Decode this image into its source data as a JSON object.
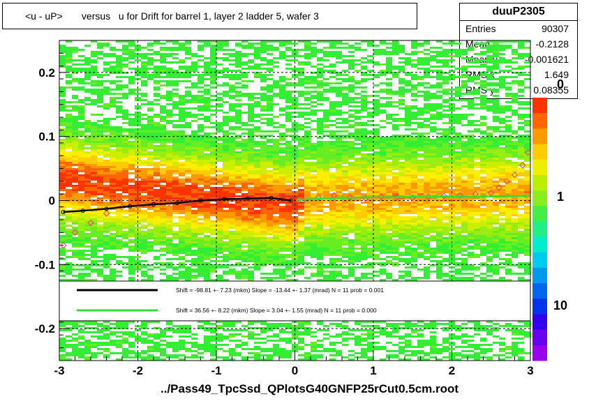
{
  "chart_data": {
    "type": "heatmap",
    "title": "<u - uP>       versus   u for Drift for barrel 1, layer 2 ladder 5, wafer 3",
    "xlabel": "../Pass49_TpcSsd_QPlotsG40GNFP25rCut0.5cm.root",
    "ylabel": "",
    "xlim": [
      -3,
      3
    ],
    "ylim": [
      -0.25,
      0.25
    ],
    "x_ticks": [
      "-3",
      "-2",
      "-1",
      "0",
      "1",
      "2",
      "3"
    ],
    "y_ticks": [
      "-0.2",
      "-0.1",
      "0",
      "0.1",
      "0.2"
    ],
    "z_ticks": [
      "10",
      "1",
      "0"
    ],
    "grid": true,
    "stats": {
      "name": "duuP2305",
      "rows": [
        {
          "label": "Entries",
          "value": "90307"
        },
        {
          "label": "Mean x",
          "value": "-0.2128"
        },
        {
          "label": "Mean y",
          "value": "-0.001621"
        },
        {
          "label": "RMS x",
          "value": "1.649"
        },
        {
          "label": "RMS y",
          "value": "0.08355"
        }
      ]
    },
    "legend": [
      {
        "color": "#000000",
        "text": "Shift =   -98.81 +- 7.23 (mkm) Slope =   -13.44 +- 1.37 (mrad)  N = 11 prob = 0.001"
      },
      {
        "color": "#33dd33",
        "text": "Shift =    36.56 +- 8.22 (mkm) Slope =     3.04 +- 1.55 (mrad)  N = 11 prob = 0.000"
      }
    ],
    "series": [
      {
        "name": "fit-left",
        "color": "#000000",
        "x": [
          -2.95,
          -2.7,
          -2.4,
          -2.1,
          -1.8,
          -1.5,
          -1.2,
          -0.9,
          -0.6,
          -0.3,
          -0.05
        ],
        "y": [
          -0.018,
          -0.016,
          -0.013,
          -0.009,
          -0.006,
          -0.004,
          0.0,
          0.002,
          0.003,
          0.004,
          0.0
        ]
      },
      {
        "name": "fit-right",
        "color": "#33dd33",
        "x": [
          0.05,
          0.3,
          0.6,
          0.9,
          1.2,
          1.5,
          1.8,
          2.1,
          2.4,
          2.7,
          2.95
        ],
        "y": [
          0.001,
          0.003,
          0.004,
          0.005,
          0.005,
          0.006,
          0.006,
          0.006,
          0.006,
          0.007,
          0.007
        ]
      }
    ],
    "profile_points": {
      "x": [
        -2.95,
        -2.8,
        -2.6,
        -2.4,
        -2.2,
        -2.0,
        -1.8,
        -1.6,
        -1.4,
        -1.2,
        -1.0,
        -0.8,
        -0.6,
        -0.4,
        -0.2,
        -0.05,
        0.1,
        0.3,
        0.5,
        0.7,
        0.9,
        1.1,
        1.3,
        1.5,
        1.7,
        1.9,
        2.1,
        2.3,
        2.5,
        2.6,
        2.7,
        2.8,
        2.9,
        2.97
      ],
      "y": [
        -0.07,
        -0.05,
        -0.035,
        -0.02,
        -0.01,
        -0.008,
        -0.006,
        -0.004,
        -0.003,
        0.0,
        0.001,
        0.002,
        0.003,
        0.006,
        0.005,
        0.0,
        0.0,
        0.005,
        0.008,
        0.005,
        0.003,
        0.006,
        0.005,
        0.004,
        0.006,
        0.007,
        0.008,
        0.01,
        0.012,
        0.02,
        0.03,
        0.04,
        0.055,
        0.075
      ]
    }
  }
}
